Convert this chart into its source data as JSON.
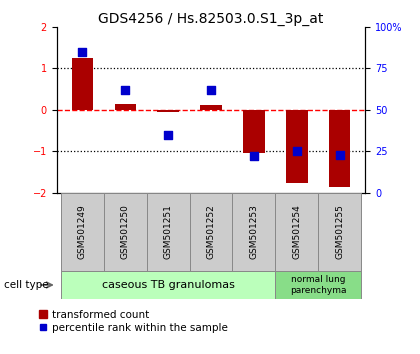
{
  "title": "GDS4256 / Hs.82503.0.S1_3p_at",
  "samples": [
    "GSM501249",
    "GSM501250",
    "GSM501251",
    "GSM501252",
    "GSM501253",
    "GSM501254",
    "GSM501255"
  ],
  "transformed_counts": [
    1.25,
    0.15,
    -0.05,
    0.12,
    -1.05,
    -1.75,
    -1.85
  ],
  "percentile_ranks": [
    85,
    62,
    35,
    62,
    22,
    25,
    23
  ],
  "bar_color": "#aa0000",
  "dot_color": "#0000cc",
  "ylim_left": [
    -2,
    2
  ],
  "yticks_left": [
    -2,
    -1,
    0,
    1,
    2
  ],
  "ylim_right": [
    0,
    100
  ],
  "yticks_right": [
    0,
    25,
    50,
    75,
    100
  ],
  "ytick_labels_right": [
    "0",
    "25",
    "50",
    "75",
    "100%"
  ],
  "hlines": [
    1,
    0,
    -1
  ],
  "hline_colors": [
    "black",
    "red",
    "black"
  ],
  "hline_styles": [
    "dotted",
    "dashed",
    "dotted"
  ],
  "group1_indices": [
    0,
    1,
    2,
    3,
    4
  ],
  "group2_indices": [
    5,
    6
  ],
  "group1_label": "caseous TB granulomas",
  "group2_label": "normal lung\nparenchyma",
  "group1_color": "#bbffbb",
  "group2_color": "#88dd88",
  "cell_type_label": "cell type",
  "legend_bar_label": "transformed count",
  "legend_dot_label": "percentile rank within the sample",
  "bar_width": 0.5,
  "dot_size": 40,
  "fig_width": 4.2,
  "fig_height": 3.54,
  "title_fontsize": 10,
  "tick_fontsize": 7,
  "sample_fontsize": 6.5,
  "legend_fontsize": 7.5,
  "group_fontsize": 8,
  "label_box_color": "#cccccc",
  "label_box_edge": "#888888"
}
